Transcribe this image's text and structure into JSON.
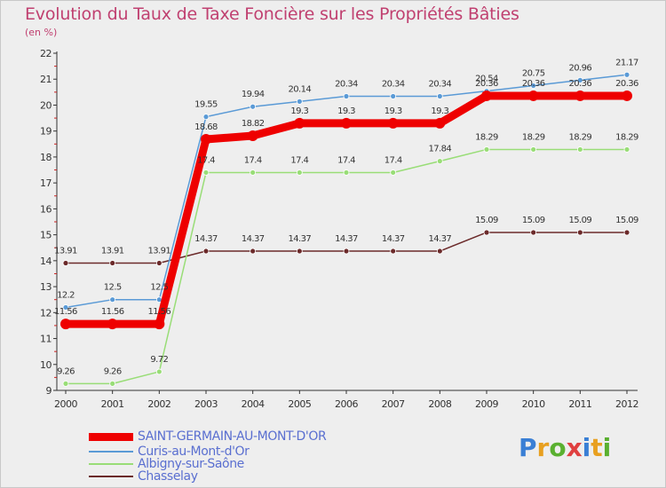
{
  "title": "Evolution du Taux de Taxe Foncière sur les Propriétés Bâties",
  "unit_label": "(en %)",
  "logo": {
    "letters": [
      "P",
      "r",
      "o",
      "x",
      "i",
      "t",
      "i"
    ],
    "colors": [
      "#3a7fd5",
      "#e8a020",
      "#5ab030",
      "#e04040",
      "#3a7fd5",
      "#e8a020",
      "#5ab030"
    ]
  },
  "chart_data": {
    "type": "line",
    "title": "Evolution du Taux de Taxe Foncière sur les Propriétés Bâties",
    "ylabel": "(en %)",
    "xlabel": "",
    "categories": [
      "2000",
      "2001",
      "2002",
      "2003",
      "2004",
      "2005",
      "2006",
      "2007",
      "2008",
      "2009",
      "2010",
      "2011",
      "2012"
    ],
    "ylim": [
      9,
      22
    ],
    "yticks": [
      "9",
      "10",
      "11",
      "12",
      "13",
      "14",
      "15",
      "16",
      "17",
      "18",
      "19",
      "20",
      "21",
      "22"
    ],
    "grid": false,
    "legend_position": "bottom-left",
    "series": [
      {
        "name": "SAINT-GERMAIN-AU-MONT-D'OR",
        "color": "#ee0000",
        "width": 9,
        "marker": 6,
        "values": [
          11.56,
          11.56,
          11.56,
          18.68,
          18.82,
          19.3,
          19.3,
          19.3,
          19.3,
          20.36,
          20.36,
          20.36,
          20.36
        ],
        "labels": [
          "11.56",
          "11.56",
          "11.56",
          "18.68",
          "18.82",
          "19.3",
          "19.3",
          "19.3",
          "19.3",
          "20.36",
          "20.36",
          "20.36",
          "20.36"
        ]
      },
      {
        "name": "Curis-au-Mont-d'Or",
        "color": "#5a9ad6",
        "width": 1.5,
        "marker": 3,
        "values": [
          12.2,
          12.5,
          12.5,
          19.55,
          19.94,
          20.14,
          20.34,
          20.34,
          20.34,
          20.54,
          20.75,
          20.96,
          21.17
        ],
        "labels": [
          "12.2",
          "12.5",
          "12.5",
          "19.55",
          "19.94",
          "20.14",
          "20.34",
          "20.34",
          "20.34",
          "20.54",
          "20.75",
          "20.96",
          "21.17"
        ]
      },
      {
        "name": "Albigny-sur-Saône",
        "color": "#99dd77",
        "width": 1.5,
        "marker": 3,
        "values": [
          9.26,
          9.26,
          9.72,
          17.4,
          17.4,
          17.4,
          17.4,
          17.4,
          17.84,
          18.29,
          18.29,
          18.29,
          18.29
        ],
        "labels": [
          "9.26",
          "9.26",
          "9.72",
          "17.4",
          "17.4",
          "17.4",
          "17.4",
          "17.4",
          "17.84",
          "18.29",
          "18.29",
          "18.29",
          "18.29"
        ]
      },
      {
        "name": "Chasselay",
        "color": "#6b2a2a",
        "width": 1.5,
        "marker": 3,
        "values": [
          13.91,
          13.91,
          13.91,
          14.37,
          14.37,
          14.37,
          14.37,
          14.37,
          14.37,
          15.09,
          15.09,
          15.09,
          15.09
        ],
        "labels": [
          "13.91",
          "13.91",
          "13.91",
          "14.37",
          "14.37",
          "14.37",
          "14.37",
          "14.37",
          "14.37",
          "15.09",
          "15.09",
          "15.09",
          "15.09"
        ]
      }
    ]
  }
}
